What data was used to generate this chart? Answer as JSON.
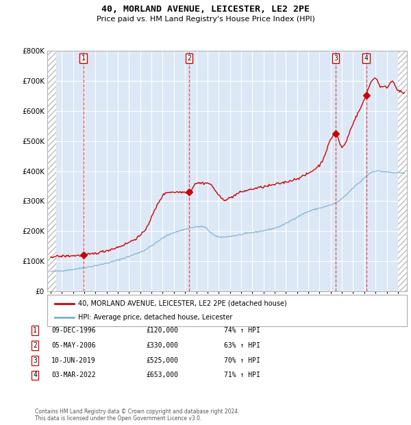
{
  "title": "40, MORLAND AVENUE, LEICESTER, LE2 2PE",
  "subtitle": "Price paid vs. HM Land Registry's House Price Index (HPI)",
  "legend_label_red": "40, MORLAND AVENUE, LEICESTER, LE2 2PE (detached house)",
  "legend_label_blue": "HPI: Average price, detached house, Leicester",
  "footer": "Contains HM Land Registry data © Crown copyright and database right 2024.\nThis data is licensed under the Open Government Licence v3.0.",
  "table": [
    {
      "num": "1",
      "date": "09-DEC-1996",
      "price": "£120,000",
      "change": "74% ↑ HPI"
    },
    {
      "num": "2",
      "date": "05-MAY-2006",
      "price": "£330,000",
      "change": "63% ↑ HPI"
    },
    {
      "num": "3",
      "date": "10-JUN-2019",
      "price": "£525,000",
      "change": "70% ↑ HPI"
    },
    {
      "num": "4",
      "date": "03-MAR-2022",
      "price": "£653,000",
      "change": "71% ↑ HPI"
    }
  ],
  "sale_years": [
    1996.92,
    2006.35,
    2019.44,
    2022.17
  ],
  "sale_prices": [
    120000,
    330000,
    525000,
    653000
  ],
  "ylim": [
    0,
    800000
  ],
  "yticks": [
    0,
    100000,
    200000,
    300000,
    400000,
    500000,
    600000,
    700000,
    800000
  ],
  "xlim_start": 1993.7,
  "xlim_end": 2025.8,
  "hpi_anchors_x": [
    1994.0,
    1998.0,
    2002.0,
    2005.0,
    2007.5,
    2009.0,
    2012.0,
    2014.0,
    2017.0,
    2019.5,
    2021.5,
    2023.0,
    2024.5,
    2025.5
  ],
  "hpi_anchors_y": [
    65000,
    85000,
    130000,
    195000,
    215000,
    180000,
    195000,
    210000,
    265000,
    295000,
    360000,
    400000,
    395000,
    393000
  ],
  "red_anchors_x": [
    1994.0,
    1996.0,
    1996.92,
    1999.0,
    2002.0,
    2004.5,
    2006.35,
    2007.0,
    2008.0,
    2009.5,
    2011.0,
    2012.0,
    2014.0,
    2016.0,
    2018.0,
    2019.44,
    2020.0,
    2021.0,
    2022.17,
    2022.5,
    2023.0,
    2023.5,
    2024.0,
    2024.5,
    2025.0,
    2025.5
  ],
  "red_anchors_y": [
    115000,
    118000,
    120000,
    135000,
    185000,
    330000,
    330000,
    360000,
    360000,
    305000,
    330000,
    340000,
    355000,
    375000,
    420000,
    525000,
    480000,
    560000,
    653000,
    690000,
    710000,
    680000,
    680000,
    700000,
    670000,
    660000
  ],
  "plot_bg": "#dce8f5",
  "red_line_color": "#cc0000",
  "blue_line_color": "#7aadcf",
  "dashed_line_color": "#dd3333",
  "marker_color": "#cc0000",
  "grid_color": "#ffffff",
  "border_color": "#aaaaaa",
  "hatch_region_left_end": 1994.5,
  "hatch_region_right_start": 2025.0
}
